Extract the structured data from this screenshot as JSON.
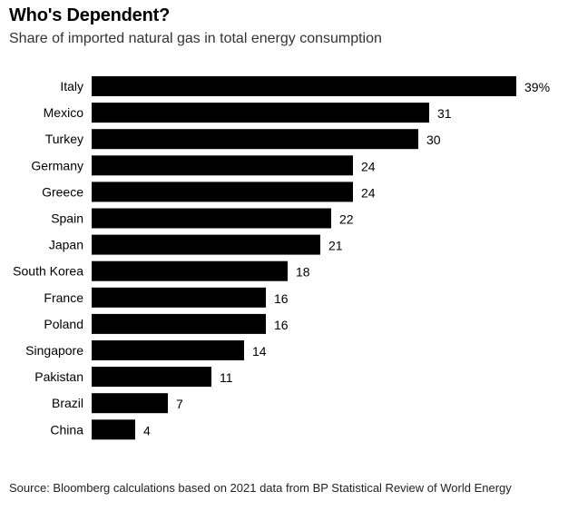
{
  "title": "Who's Dependent?",
  "subtitle": "Share of imported natural gas in total energy consumption",
  "source": "Source: Bloomberg calculations based on 2021 data from BP Statistical Review of World Energy",
  "chart_data": {
    "type": "bar",
    "orientation": "horizontal",
    "title": "Who's Dependent?",
    "subtitle": "Share of imported natural gas in total energy consumption",
    "categories": [
      "Italy",
      "Mexico",
      "Turkey",
      "Germany",
      "Greece",
      "Spain",
      "Japan",
      "South Korea",
      "France",
      "Poland",
      "Singapore",
      "Pakistan",
      "Brazil",
      "China"
    ],
    "values": [
      39,
      31,
      30,
      24,
      24,
      22,
      21,
      18,
      16,
      16,
      14,
      11,
      7,
      4
    ],
    "value_labels": [
      "39%",
      "31",
      "30",
      "24",
      "24",
      "22",
      "21",
      "18",
      "16",
      "16",
      "14",
      "11",
      "7",
      "4"
    ],
    "unit": "%",
    "xlim": [
      0,
      39
    ],
    "bar_color": "#000000",
    "grid": false,
    "legend": "none"
  }
}
